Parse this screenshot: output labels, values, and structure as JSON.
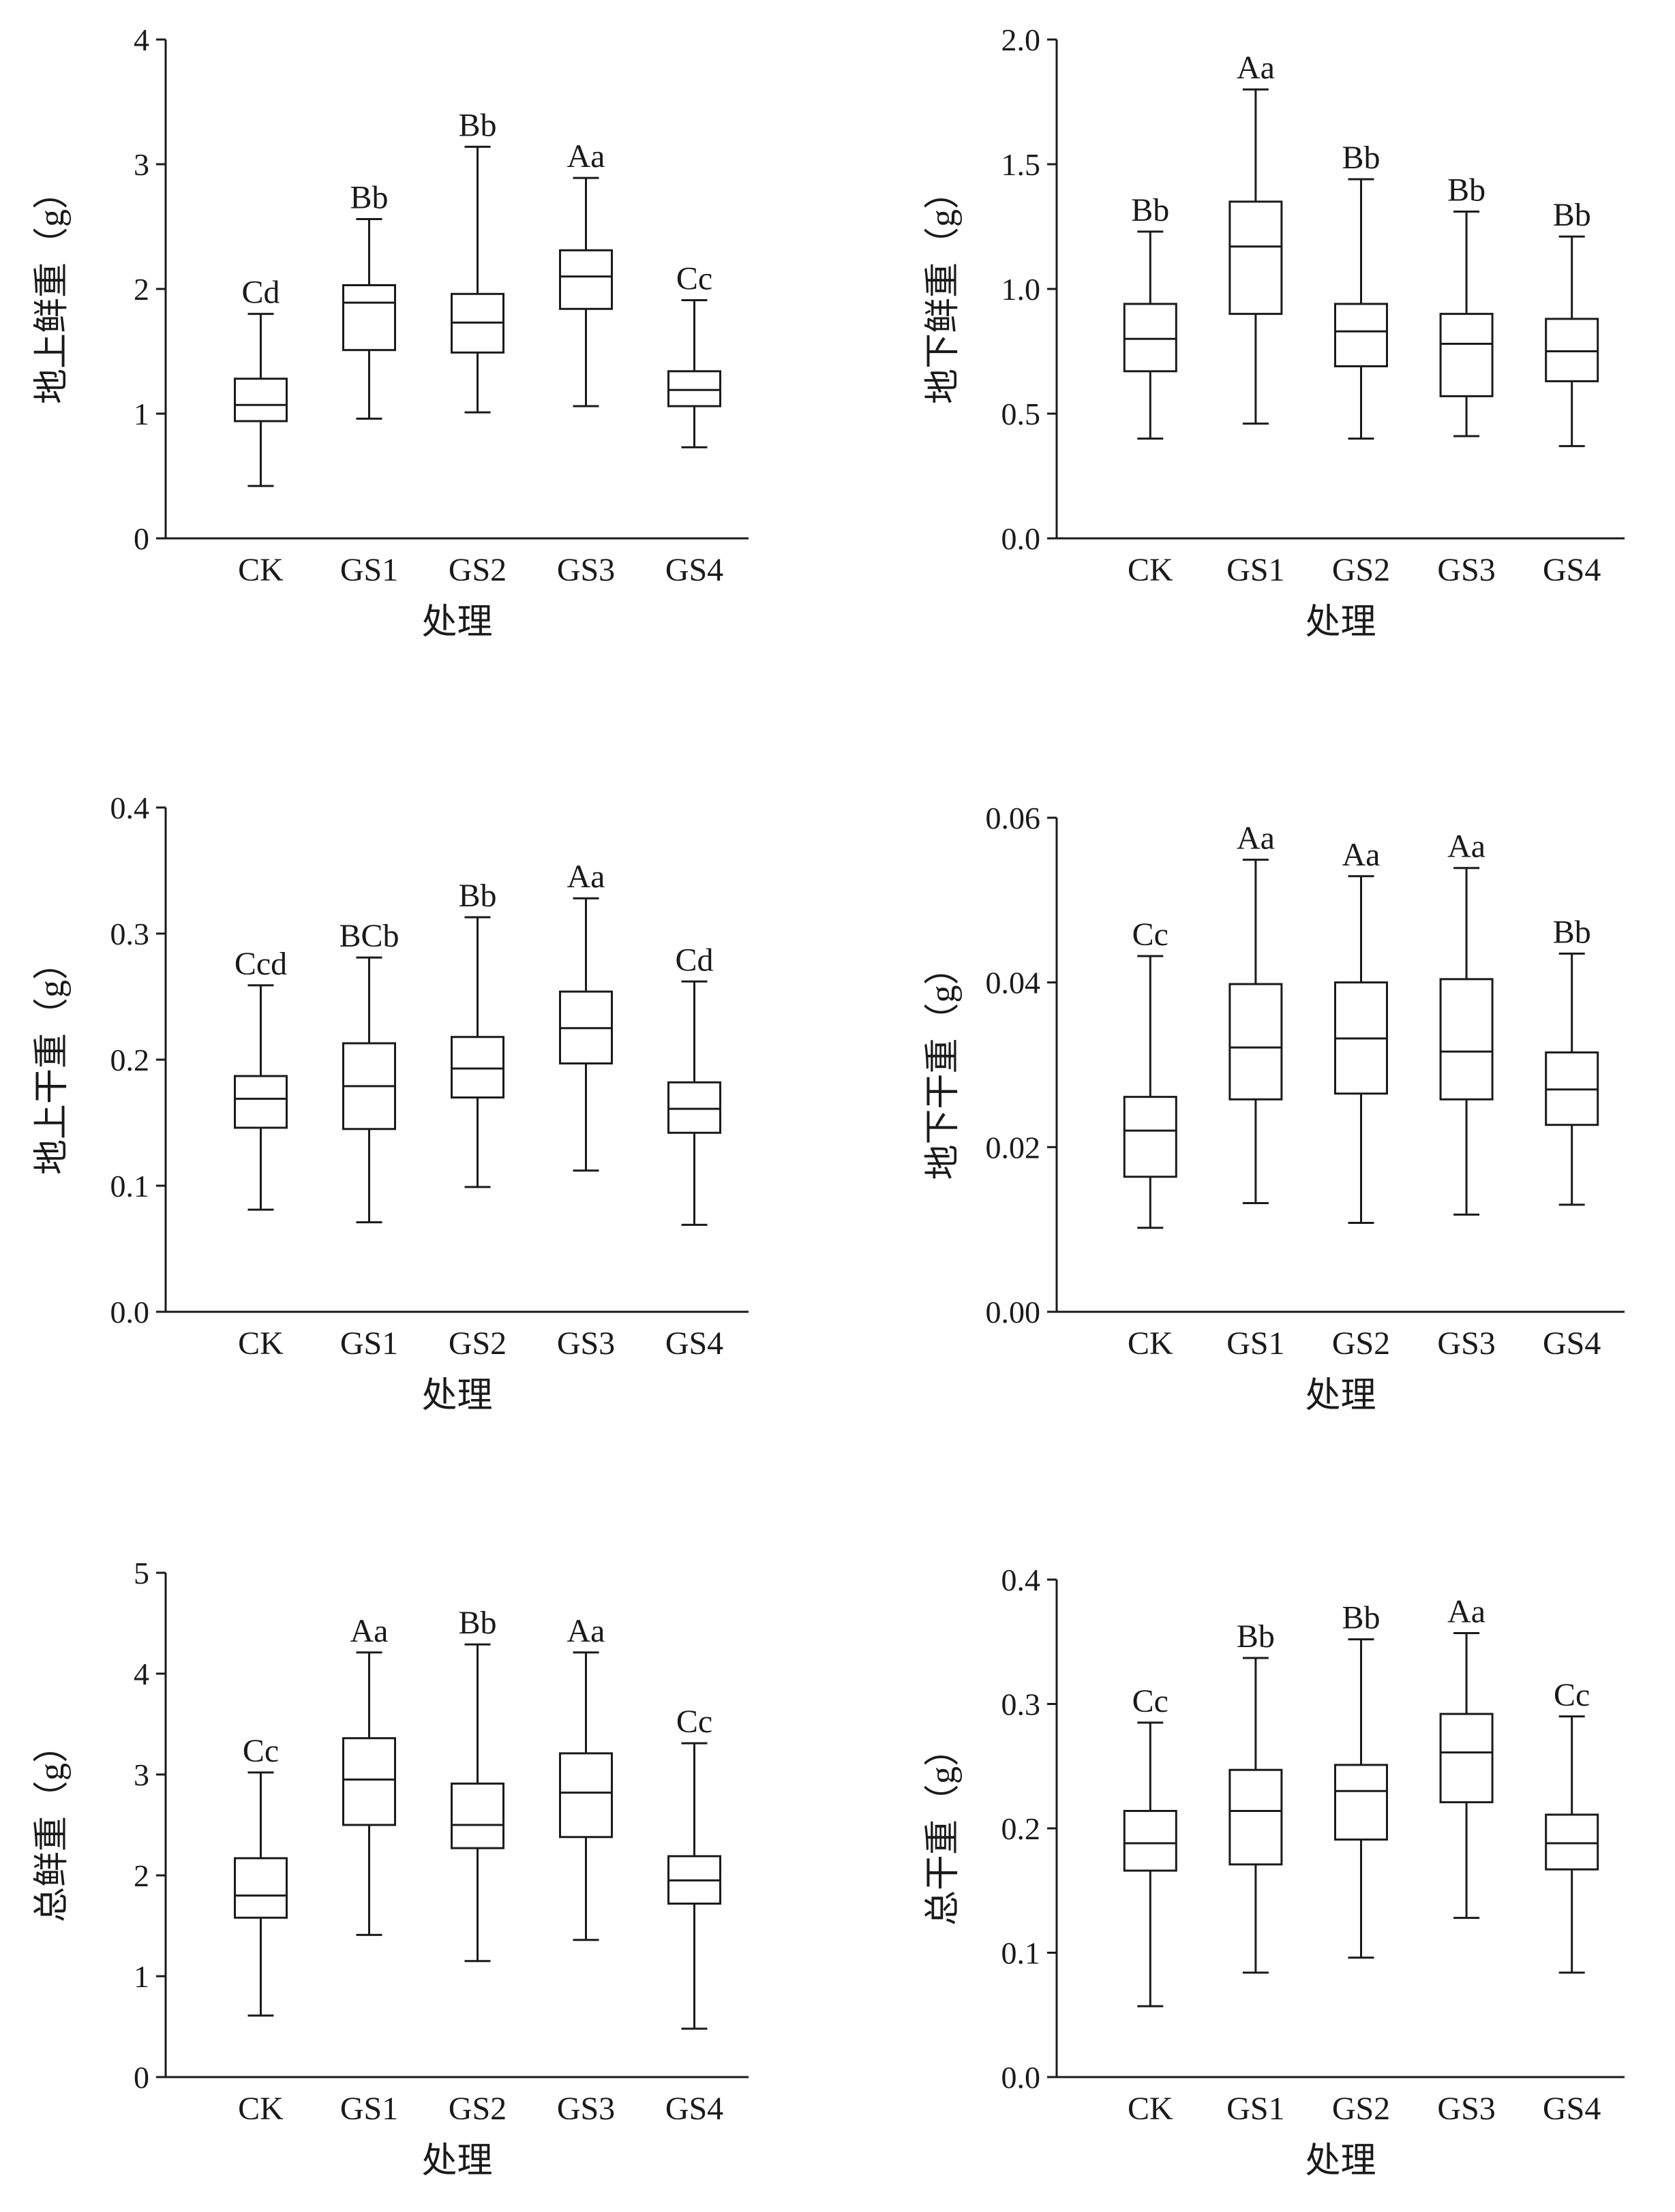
{
  "chart_data": [
    {
      "type": "box",
      "ylabel": "地上鲜重（g）",
      "xlabel": "处理",
      "ylim": [
        0,
        4
      ],
      "yticks": [
        "0",
        "1",
        "2",
        "3",
        "4"
      ],
      "categories": [
        "CK",
        "GS1",
        "GS2",
        "GS3",
        "GS4"
      ],
      "boxes": [
        {
          "min": 0.42,
          "q1": 0.94,
          "median": 1.07,
          "q3": 1.28,
          "max": 1.8,
          "label": "Cd"
        },
        {
          "min": 0.96,
          "q1": 1.51,
          "median": 1.89,
          "q3": 2.03,
          "max": 2.56,
          "label": "Bb"
        },
        {
          "min": 1.01,
          "q1": 1.49,
          "median": 1.73,
          "q3": 1.96,
          "max": 3.14,
          "label": "Bb"
        },
        {
          "min": 1.06,
          "q1": 1.84,
          "median": 2.1,
          "q3": 2.31,
          "max": 2.89,
          "label": "Aa"
        },
        {
          "min": 0.73,
          "q1": 1.06,
          "median": 1.19,
          "q3": 1.34,
          "max": 1.91,
          "label": "Cc"
        }
      ]
    },
    {
      "type": "box",
      "ylabel": "地下鲜重（g）",
      "xlabel": "处理",
      "ylim": [
        0,
        2
      ],
      "yticks": [
        "0.0",
        "0.5",
        "1.0",
        "1.5",
        "2.0"
      ],
      "categories": [
        "CK",
        "GS1",
        "GS2",
        "GS3",
        "GS4"
      ],
      "boxes": [
        {
          "min": 0.4,
          "q1": 0.67,
          "median": 0.8,
          "q3": 0.94,
          "max": 1.23,
          "label": "Bb"
        },
        {
          "min": 0.46,
          "q1": 0.9,
          "median": 1.17,
          "q3": 1.35,
          "max": 1.8,
          "label": "Aa"
        },
        {
          "min": 0.4,
          "q1": 0.69,
          "median": 0.83,
          "q3": 0.94,
          "max": 1.44,
          "label": "Bb"
        },
        {
          "min": 0.41,
          "q1": 0.57,
          "median": 0.78,
          "q3": 0.9,
          "max": 1.31,
          "label": "Bb"
        },
        {
          "min": 0.37,
          "q1": 0.63,
          "median": 0.75,
          "q3": 0.88,
          "max": 1.21,
          "label": "Bb"
        }
      ]
    },
    {
      "type": "box",
      "ylabel": "地上干重（g）",
      "xlabel": "处理",
      "ylim": [
        0,
        0.4
      ],
      "yticks": [
        "0.0",
        "0.1",
        "0.2",
        "0.3",
        "0.4"
      ],
      "categories": [
        "CK",
        "GS1",
        "GS2",
        "GS3",
        "GS4"
      ],
      "boxes": [
        {
          "min": 0.081,
          "q1": 0.146,
          "median": 0.169,
          "q3": 0.187,
          "max": 0.259,
          "label": "Ccd"
        },
        {
          "min": 0.071,
          "q1": 0.145,
          "median": 0.179,
          "q3": 0.213,
          "max": 0.281,
          "label": "BCb"
        },
        {
          "min": 0.099,
          "q1": 0.17,
          "median": 0.193,
          "q3": 0.218,
          "max": 0.313,
          "label": "Bb"
        },
        {
          "min": 0.112,
          "q1": 0.197,
          "median": 0.225,
          "q3": 0.254,
          "max": 0.328,
          "label": "Aa"
        },
        {
          "min": 0.069,
          "q1": 0.142,
          "median": 0.161,
          "q3": 0.182,
          "max": 0.262,
          "label": "Cd"
        }
      ]
    },
    {
      "type": "box",
      "ylabel": "地下干重（g）",
      "xlabel": "处理",
      "ylim": [
        0,
        0.06
      ],
      "yticks": [
        "0.00",
        "0.02",
        "0.04",
        "0.06"
      ],
      "categories": [
        "CK",
        "GS1",
        "GS2",
        "GS3",
        "GS4"
      ],
      "boxes": [
        {
          "min": 0.0102,
          "q1": 0.0164,
          "median": 0.022,
          "q3": 0.0261,
          "max": 0.0432,
          "label": "Cc"
        },
        {
          "min": 0.0132,
          "q1": 0.0258,
          "median": 0.0321,
          "q3": 0.0398,
          "max": 0.0549,
          "label": "Aa"
        },
        {
          "min": 0.0108,
          "q1": 0.0265,
          "median": 0.0332,
          "q3": 0.04,
          "max": 0.0529,
          "label": "Aa"
        },
        {
          "min": 0.0118,
          "q1": 0.0258,
          "median": 0.0316,
          "q3": 0.0404,
          "max": 0.0539,
          "label": "Aa"
        },
        {
          "min": 0.013,
          "q1": 0.0227,
          "median": 0.027,
          "q3": 0.0315,
          "max": 0.0435,
          "label": "Bb"
        }
      ]
    },
    {
      "type": "box",
      "ylabel": "总鲜重（g）",
      "xlabel": "处理",
      "ylim": [
        0,
        5
      ],
      "yticks": [
        "0",
        "1",
        "2",
        "3",
        "4",
        "5"
      ],
      "categories": [
        "CK",
        "GS1",
        "GS2",
        "GS3",
        "GS4"
      ],
      "boxes": [
        {
          "min": 0.61,
          "q1": 1.58,
          "median": 1.8,
          "q3": 2.17,
          "max": 3.02,
          "label": "Cc"
        },
        {
          "min": 1.41,
          "q1": 2.5,
          "median": 2.95,
          "q3": 3.36,
          "max": 4.21,
          "label": "Aa"
        },
        {
          "min": 1.15,
          "q1": 2.27,
          "median": 2.5,
          "q3": 2.91,
          "max": 4.29,
          "label": "Bb"
        },
        {
          "min": 1.36,
          "q1": 2.38,
          "median": 2.82,
          "q3": 3.21,
          "max": 4.21,
          "label": "Aa"
        },
        {
          "min": 0.48,
          "q1": 1.72,
          "median": 1.95,
          "q3": 2.19,
          "max": 3.31,
          "label": "Cc"
        }
      ]
    },
    {
      "type": "box",
      "ylabel": "总干重（g）",
      "xlabel": "处理",
      "ylim": [
        0,
        0.4
      ],
      "yticks": [
        "0.0",
        "0.1",
        "0.2",
        "0.3",
        "0.4"
      ],
      "categories": [
        "CK",
        "GS1",
        "GS2",
        "GS3",
        "GS4"
      ],
      "boxes": [
        {
          "min": 0.057,
          "q1": 0.166,
          "median": 0.188,
          "q3": 0.214,
          "max": 0.285,
          "label": "Cc"
        },
        {
          "min": 0.084,
          "q1": 0.171,
          "median": 0.214,
          "q3": 0.247,
          "max": 0.337,
          "label": "Bb"
        },
        {
          "min": 0.096,
          "q1": 0.191,
          "median": 0.23,
          "q3": 0.251,
          "max": 0.352,
          "label": "Bb"
        },
        {
          "min": 0.128,
          "q1": 0.221,
          "median": 0.261,
          "q3": 0.292,
          "max": 0.357,
          "label": "Aa"
        },
        {
          "min": 0.084,
          "q1": 0.167,
          "median": 0.188,
          "q3": 0.211,
          "max": 0.29,
          "label": "Cc"
        }
      ]
    }
  ]
}
